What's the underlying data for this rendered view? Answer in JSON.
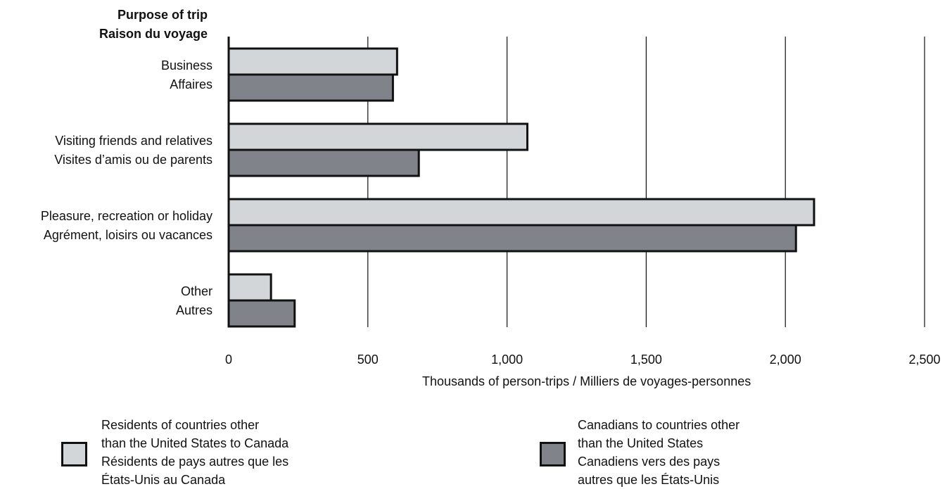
{
  "chart_data": {
    "type": "bar",
    "orientation": "horizontal",
    "y_title": [
      "Purpose of trip",
      "Raison du voyage"
    ],
    "categories": [
      [
        "Business",
        "Affaires"
      ],
      [
        "Visiting friends and relatives",
        "Visites d’amis ou de parents"
      ],
      [
        "Pleasure, recreation or holiday",
        "Agrément, loisirs ou vacances"
      ],
      [
        "Other",
        "Autres"
      ]
    ],
    "series": [
      {
        "name": "Residents of countries other than the United States to Canada / Résidents de pays autres que les États-Unis au Canada",
        "legend_lines": [
          "Residents of countries other",
          "than the United States to Canada",
          "Résidents de pays autres que les",
          "États-Unis au Canada"
        ],
        "color": "#d3d6d8",
        "values": [
          605,
          1073,
          2103,
          152
        ]
      },
      {
        "name": "Canadians to countries other than the United States / Canadiens vers des pays autres que les États-Unis",
        "legend_lines": [
          "Canadians to countries other",
          "than the United States",
          "Canadiens vers des pays",
          "autres que les États-Unis"
        ],
        "color": "#80838a",
        "values": [
          590,
          683,
          2038,
          237
        ]
      }
    ],
    "xlim": [
      0,
      2500
    ],
    "xticks": [
      "0",
      "500",
      "1,000",
      "1,500",
      "2,000",
      "2,500"
    ],
    "xtick_values": [
      0,
      500,
      1000,
      1500,
      2000,
      2500
    ],
    "xlabel": "Thousands of person-trips / Milliers de voyages-personnes",
    "grid": "vertical",
    "legend": "bottom"
  }
}
